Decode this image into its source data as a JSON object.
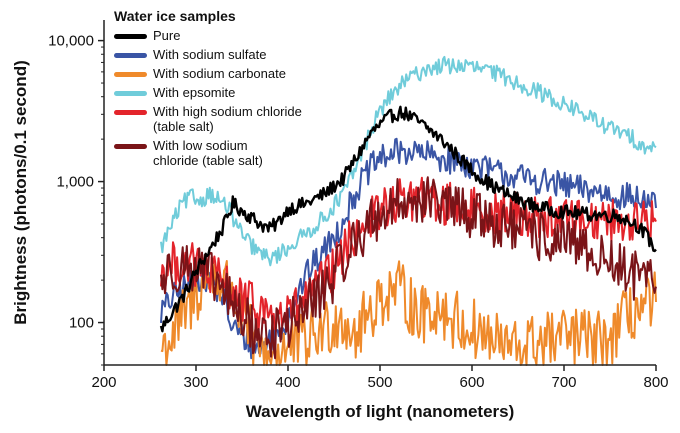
{
  "chart_data": {
    "type": "line",
    "title": "",
    "xlabel": "Wavelength of light (nanometers)",
    "ylabel": "Brightness (photons/0.1 second)",
    "xlim": [
      200,
      800
    ],
    "ylim": [
      50,
      14000
    ],
    "yscale": "log",
    "x_ticks": [
      200,
      300,
      400,
      500,
      600,
      700,
      800
    ],
    "y_ticks": [
      {
        "value": 100,
        "label": "100"
      },
      {
        "value": 1000,
        "label": "1,000"
      },
      {
        "value": 10000,
        "label": "10,000"
      }
    ],
    "legend": {
      "title": "Water ice samples",
      "position": "top-left"
    },
    "series": [
      {
        "name": "Pure",
        "color": "#000000",
        "points": [
          [
            262,
            90
          ],
          [
            275,
            120
          ],
          [
            288,
            160
          ],
          [
            300,
            230
          ],
          [
            315,
            330
          ],
          [
            330,
            480
          ],
          [
            340,
            700
          ],
          [
            350,
            620
          ],
          [
            360,
            560
          ],
          [
            370,
            500
          ],
          [
            380,
            460
          ],
          [
            390,
            520
          ],
          [
            400,
            640
          ],
          [
            420,
            700
          ],
          [
            440,
            820
          ],
          [
            460,
            1050
          ],
          [
            475,
            1500
          ],
          [
            490,
            2200
          ],
          [
            505,
            2700
          ],
          [
            515,
            3000
          ],
          [
            525,
            3100
          ],
          [
            540,
            2700
          ],
          [
            555,
            2300
          ],
          [
            570,
            1900
          ],
          [
            585,
            1500
          ],
          [
            600,
            1200
          ],
          [
            620,
            950
          ],
          [
            640,
            800
          ],
          [
            660,
            700
          ],
          [
            680,
            640
          ],
          [
            700,
            610
          ],
          [
            720,
            590
          ],
          [
            740,
            580
          ],
          [
            760,
            570
          ],
          [
            780,
            490
          ],
          [
            790,
            410
          ],
          [
            800,
            330
          ]
        ]
      },
      {
        "name": "With sodium sulfate",
        "color": "#3a55a5",
        "points": [
          [
            262,
            120
          ],
          [
            275,
            150
          ],
          [
            290,
            185
          ],
          [
            305,
            210
          ],
          [
            320,
            185
          ],
          [
            330,
            150
          ],
          [
            335,
            110
          ],
          [
            340,
            95
          ],
          [
            350,
            80
          ],
          [
            360,
            70
          ],
          [
            370,
            65
          ],
          [
            380,
            75
          ],
          [
            390,
            85
          ],
          [
            400,
            110
          ],
          [
            420,
            220
          ],
          [
            440,
            330
          ],
          [
            455,
            450
          ],
          [
            470,
            750
          ],
          [
            480,
            1000
          ],
          [
            490,
            1250
          ],
          [
            500,
            1450
          ],
          [
            515,
            1600
          ],
          [
            530,
            1650
          ],
          [
            550,
            1550
          ],
          [
            570,
            1450
          ],
          [
            590,
            1350
          ],
          [
            610,
            1250
          ],
          [
            630,
            1150
          ],
          [
            650,
            1080
          ],
          [
            670,
            1020
          ],
          [
            690,
            960
          ],
          [
            710,
            900
          ],
          [
            730,
            860
          ],
          [
            750,
            820
          ],
          [
            770,
            780
          ],
          [
            790,
            730
          ],
          [
            800,
            650
          ]
        ]
      },
      {
        "name": "With sodium carbonate",
        "color": "#ef8a2b",
        "points": [
          [
            262,
            65
          ],
          [
            275,
            80
          ],
          [
            290,
            120
          ],
          [
            305,
            180
          ],
          [
            320,
            220
          ],
          [
            335,
            180
          ],
          [
            345,
            130
          ],
          [
            355,
            90
          ],
          [
            365,
            70
          ],
          [
            380,
            60
          ],
          [
            400,
            65
          ],
          [
            420,
            75
          ],
          [
            440,
            90
          ],
          [
            455,
            110
          ],
          [
            465,
            100
          ],
          [
            475,
            80
          ],
          [
            485,
            110
          ],
          [
            500,
            150
          ],
          [
            515,
            170
          ],
          [
            525,
            160
          ],
          [
            535,
            130
          ],
          [
            545,
            110
          ],
          [
            555,
            130
          ],
          [
            570,
            120
          ],
          [
            590,
            95
          ],
          [
            610,
            85
          ],
          [
            630,
            70
          ],
          [
            650,
            65
          ],
          [
            670,
            72
          ],
          [
            690,
            75
          ],
          [
            710,
            80
          ],
          [
            730,
            75
          ],
          [
            745,
            70
          ],
          [
            760,
            95
          ],
          [
            775,
            120
          ],
          [
            790,
            130
          ],
          [
            800,
            140
          ]
        ]
      },
      {
        "name": "With epsomite",
        "color": "#70ccda",
        "points": [
          [
            262,
            340
          ],
          [
            275,
            520
          ],
          [
            285,
            700
          ],
          [
            295,
            780
          ],
          [
            305,
            730
          ],
          [
            315,
            830
          ],
          [
            325,
            740
          ],
          [
            335,
            650
          ],
          [
            345,
            480
          ],
          [
            355,
            380
          ],
          [
            365,
            330
          ],
          [
            375,
            290
          ],
          [
            385,
            290
          ],
          [
            400,
            340
          ],
          [
            420,
            430
          ],
          [
            440,
            560
          ],
          [
            460,
            820
          ],
          [
            475,
            1300
          ],
          [
            490,
            2300
          ],
          [
            500,
            3200
          ],
          [
            515,
            4300
          ],
          [
            530,
            5300
          ],
          [
            550,
            6300
          ],
          [
            570,
            6700
          ],
          [
            590,
            6600
          ],
          [
            610,
            6300
          ],
          [
            630,
            5700
          ],
          [
            650,
            5000
          ],
          [
            670,
            4400
          ],
          [
            690,
            3800
          ],
          [
            710,
            3300
          ],
          [
            730,
            2800
          ],
          [
            750,
            2400
          ],
          [
            770,
            2100
          ],
          [
            785,
            1850
          ],
          [
            795,
            1700
          ],
          [
            800,
            1750
          ]
        ]
      },
      {
        "name": "With high sodium chloride\n(table salt)",
        "color": "#e3242b",
        "points": [
          [
            262,
            220
          ],
          [
            275,
            260
          ],
          [
            290,
            270
          ],
          [
            305,
            240
          ],
          [
            320,
            210
          ],
          [
            335,
            180
          ],
          [
            345,
            150
          ],
          [
            355,
            140
          ],
          [
            365,
            130
          ],
          [
            380,
            115
          ],
          [
            395,
            110
          ],
          [
            410,
            130
          ],
          [
            430,
            170
          ],
          [
            450,
            240
          ],
          [
            465,
            350
          ],
          [
            475,
            450
          ],
          [
            490,
            550
          ],
          [
            505,
            650
          ],
          [
            520,
            720
          ],
          [
            535,
            760
          ],
          [
            550,
            740
          ],
          [
            570,
            700
          ],
          [
            590,
            660
          ],
          [
            610,
            620
          ],
          [
            630,
            600
          ],
          [
            650,
            590
          ],
          [
            670,
            570
          ],
          [
            690,
            560
          ],
          [
            710,
            550
          ],
          [
            730,
            545
          ],
          [
            750,
            540
          ],
          [
            770,
            530
          ],
          [
            785,
            520
          ],
          [
            800,
            520
          ]
        ]
      },
      {
        "name": "With low sodium\nchloride (table salt)",
        "color": "#7a1418",
        "points": [
          [
            262,
            200
          ],
          [
            275,
            240
          ],
          [
            290,
            260
          ],
          [
            305,
            230
          ],
          [
            320,
            200
          ],
          [
            335,
            150
          ],
          [
            350,
            110
          ],
          [
            365,
            85
          ],
          [
            380,
            80
          ],
          [
            395,
            90
          ],
          [
            410,
            110
          ],
          [
            430,
            150
          ],
          [
            450,
            210
          ],
          [
            465,
            320
          ],
          [
            480,
            430
          ],
          [
            495,
            550
          ],
          [
            510,
            650
          ],
          [
            525,
            730
          ],
          [
            540,
            760
          ],
          [
            555,
            730
          ],
          [
            570,
            680
          ],
          [
            590,
            620
          ],
          [
            610,
            560
          ],
          [
            630,
            500
          ],
          [
            650,
            450
          ],
          [
            670,
            410
          ],
          [
            690,
            380
          ],
          [
            710,
            350
          ],
          [
            730,
            310
          ],
          [
            750,
            270
          ],
          [
            770,
            230
          ],
          [
            785,
            200
          ],
          [
            800,
            180
          ]
        ]
      }
    ]
  }
}
